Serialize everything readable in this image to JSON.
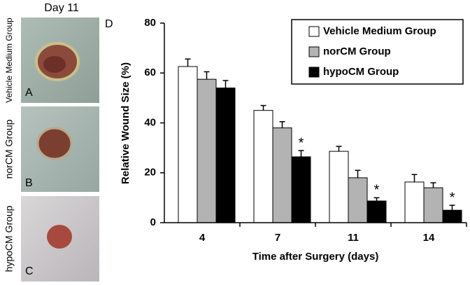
{
  "figure": {
    "header": "Day 11",
    "chart_letter": "D",
    "photos": [
      {
        "letter": "A",
        "label": "Vehicle Medium Group"
      },
      {
        "letter": "B",
        "label": "norCM Group"
      },
      {
        "letter": "C",
        "label": "hypoCM Group"
      }
    ]
  },
  "chart_data": {
    "type": "bar",
    "y_label": "Relative Wound Size (%)",
    "x_label": "Time after Surgery (days)",
    "categories": [
      "4",
      "7",
      "11",
      "14"
    ],
    "series": [
      {
        "name": "Vehicle Medium Group",
        "color": "#ffffff",
        "values": [
          62.6,
          45,
          28.6,
          16.3
        ],
        "errors": [
          3,
          2,
          2,
          3
        ],
        "markers": [
          null,
          null,
          null,
          null
        ]
      },
      {
        "name": "norCM Group",
        "color": "#b3b3b3",
        "values": [
          57.5,
          38,
          18,
          14
        ],
        "errors": [
          3,
          2.5,
          3,
          2
        ],
        "markers": [
          null,
          null,
          null,
          null
        ]
      },
      {
        "name": "hypoCM Group",
        "color": "#000000",
        "values": [
          54,
          26.4,
          8.7,
          5
        ],
        "errors": [
          3,
          2.5,
          1.3,
          2
        ],
        "markers": [
          null,
          "*",
          "*",
          "*"
        ]
      }
    ],
    "ylim": [
      0,
      80
    ],
    "yticks": [
      0,
      20,
      40,
      60,
      80
    ],
    "grid": false,
    "legend": "top-right"
  }
}
